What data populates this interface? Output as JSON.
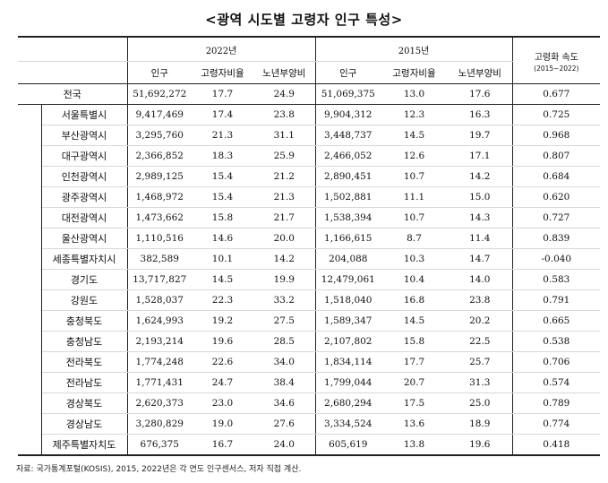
{
  "title": "<광역 시도별 고령자 인구 특성>",
  "headers": {
    "year_2022": "2022년",
    "year_2015": "2015년",
    "speed": "고령화 속도",
    "speed_period": "(2015~2022)",
    "pop": "인구",
    "ratio": "고령자비율",
    "dependency": "노년부양비"
  },
  "rows": [
    {
      "name": "전국",
      "p22": "51,692,272",
      "r22": "17.7",
      "d22": "24.9",
      "p15": "51,069,375",
      "r15": "13.0",
      "d15": "17.6",
      "speed": "0.677"
    },
    {
      "name": "서울특별시",
      "p22": "9,417,469",
      "r22": "17.4",
      "d22": "23.8",
      "p15": "9,904,312",
      "r15": "12.3",
      "d15": "16.3",
      "speed": "0.725"
    },
    {
      "name": "부산광역시",
      "p22": "3,295,760",
      "r22": "21.3",
      "d22": "31.1",
      "p15": "3,448,737",
      "r15": "14.5",
      "d15": "19.7",
      "speed": "0.968"
    },
    {
      "name": "대구광역시",
      "p22": "2,366,852",
      "r22": "18.3",
      "d22": "25.9",
      "p15": "2,466,052",
      "r15": "12.6",
      "d15": "17.1",
      "speed": "0.807"
    },
    {
      "name": "인천광역시",
      "p22": "2,989,125",
      "r22": "15.4",
      "d22": "21.2",
      "p15": "2,890,451",
      "r15": "10.7",
      "d15": "14.2",
      "speed": "0.684"
    },
    {
      "name": "광주광역시",
      "p22": "1,468,972",
      "r22": "15.4",
      "d22": "21.3",
      "p15": "1,502,881",
      "r15": "11.1",
      "d15": "15.0",
      "speed": "0.620"
    },
    {
      "name": "대전광역시",
      "p22": "1,473,662",
      "r22": "15.8",
      "d22": "21.7",
      "p15": "1,538,394",
      "r15": "10.7",
      "d15": "14.3",
      "speed": "0.727"
    },
    {
      "name": "울산광역시",
      "p22": "1,110,516",
      "r22": "14.6",
      "d22": "20.0",
      "p15": "1,166,615",
      "r15": "8.7",
      "d15": "11.4",
      "speed": "0.839"
    },
    {
      "name": "세종특별자치시",
      "p22": "382,589",
      "r22": "10.1",
      "d22": "14.2",
      "p15": "204,088",
      "r15": "10.3",
      "d15": "14.7",
      "speed": "-0.040"
    },
    {
      "name": "경기도",
      "p22": "13,717,827",
      "r22": "14.5",
      "d22": "19.9",
      "p15": "12,479,061",
      "r15": "10.4",
      "d15": "14.0",
      "speed": "0.583"
    },
    {
      "name": "강원도",
      "p22": "1,528,037",
      "r22": "22.3",
      "d22": "33.2",
      "p15": "1,518,040",
      "r15": "16.8",
      "d15": "23.8",
      "speed": "0.791"
    },
    {
      "name": "충청북도",
      "p22": "1,624,993",
      "r22": "19.2",
      "d22": "27.5",
      "p15": "1,589,347",
      "r15": "14.5",
      "d15": "20.2",
      "speed": "0.665"
    },
    {
      "name": "충청남도",
      "p22": "2,193,214",
      "r22": "19.6",
      "d22": "28.5",
      "p15": "2,107,802",
      "r15": "15.8",
      "d15": "22.5",
      "speed": "0.538"
    },
    {
      "name": "전라북도",
      "p22": "1,774,248",
      "r22": "22.6",
      "d22": "34.0",
      "p15": "1,834,114",
      "r15": "17.7",
      "d15": "25.7",
      "speed": "0.706"
    },
    {
      "name": "전라남도",
      "p22": "1,771,431",
      "r22": "24.7",
      "d22": "38.4",
      "p15": "1,799,044",
      "r15": "20.7",
      "d15": "31.3",
      "speed": "0.574"
    },
    {
      "name": "경상북도",
      "p22": "2,620,373",
      "r22": "23.0",
      "d22": "34.6",
      "p15": "2,680,294",
      "r15": "17.5",
      "d15": "25.0",
      "speed": "0.789"
    },
    {
      "name": "경상남도",
      "p22": "3,280,829",
      "r22": "19.0",
      "d22": "27.6",
      "p15": "3,334,524",
      "r15": "13.6",
      "d15": "18.9",
      "speed": "0.774"
    },
    {
      "name": "제주특별자치도",
      "p22": "676,375",
      "r22": "16.7",
      "d22": "24.0",
      "p15": "605,619",
      "r15": "13.8",
      "d15": "19.6",
      "speed": "0.418"
    }
  ],
  "source": "자료: 국가통계포털(KOSIS), 2015, 2022년은 각 연도 인구센서스, 저자 직접 계산."
}
